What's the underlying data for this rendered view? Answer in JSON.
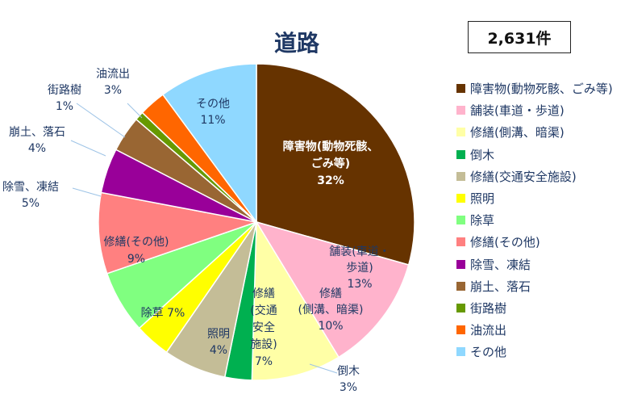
{
  "title": "道路",
  "total": "2,631件",
  "chart_data": {
    "type": "pie",
    "title": "道路",
    "slices": [
      {
        "label": "障害物(動物死骸、ごみ等)",
        "slice_text": [
          "障害物(動物死骸、",
          "ごみ等)"
        ],
        "value": 32,
        "value_label": "32%",
        "color": "#663300"
      },
      {
        "label": "舗装(車道・歩道)",
        "slice_text": [
          "舗装(車道・",
          "歩道)"
        ],
        "value": 13,
        "value_label": "13%",
        "color": "#ffb3cc"
      },
      {
        "label": "修繕(側溝、暗渠)",
        "slice_text": [
          "修繕",
          "(側溝、暗渠)"
        ],
        "value": 10,
        "value_label": "10%",
        "color": "#ffffa6"
      },
      {
        "label": "倒木",
        "slice_text": [
          "倒木"
        ],
        "value": 3,
        "value_label": "3%",
        "color": "#00b050"
      },
      {
        "label": "修繕(交通安全施設)",
        "slice_text": [
          "修繕",
          "(交通",
          "安全",
          "施設)"
        ],
        "value": 7,
        "value_label": "7%",
        "color": "#c4bd97"
      },
      {
        "label": "照明",
        "slice_text": [
          "照明"
        ],
        "value": 4,
        "value_label": "4%",
        "color": "#ffff00"
      },
      {
        "label": "除草",
        "slice_text": [
          "除草"
        ],
        "value": 7,
        "value_label": "7%",
        "color": "#80ff80"
      },
      {
        "label": "修繕(その他)",
        "slice_text": [
          "修繕(その他)"
        ],
        "value": 9,
        "value_label": "9%",
        "color": "#ff8080"
      },
      {
        "label": "除雪、凍結",
        "slice_text": [
          "除雪、凍結"
        ],
        "value": 5,
        "value_label": "5%",
        "color": "#990099"
      },
      {
        "label": "崩土、落石",
        "slice_text": [
          "崩土、落石"
        ],
        "value": 4,
        "value_label": "4%",
        "color": "#996633"
      },
      {
        "label": "街路樹",
        "slice_text": [
          "街路樹"
        ],
        "value": 1,
        "value_label": "1%",
        "color": "#669900"
      },
      {
        "label": "油流出",
        "slice_text": [
          "油流出"
        ],
        "value": 3,
        "value_label": "3%",
        "color": "#ff6600"
      },
      {
        "label": "その他",
        "slice_text": [
          "その他"
        ],
        "value": 11,
        "value_label": "11%",
        "color": "#8fd8ff"
      }
    ],
    "legend_position": "right"
  }
}
